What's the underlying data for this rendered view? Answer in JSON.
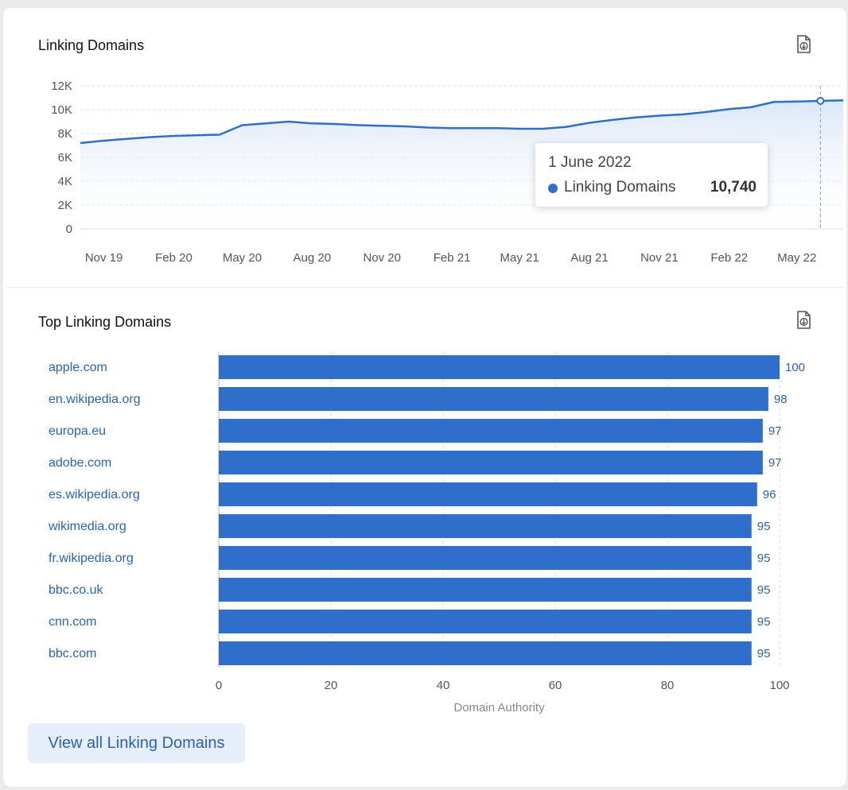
{
  "colors": {
    "accent": "#2f6fcb",
    "bar": "#2f6fcb",
    "link": "#2a62b7",
    "area_fill": "#e9f0fb",
    "grid": "#dcdcdc",
    "axis_text": "#555555",
    "button_bg": "#e6eef9"
  },
  "icons": {
    "export": "file-export-icon"
  },
  "line_section": {
    "title": "Linking Domains"
  },
  "tooltip": {
    "date": "1 June 2022",
    "series": "Linking Domains",
    "value": "10,740"
  },
  "bar_section": {
    "title": "Top Linking Domains"
  },
  "button": {
    "label": "View all Linking Domains"
  },
  "chart_data": [
    {
      "type": "area",
      "title": "Linking Domains",
      "xlabel": "",
      "ylabel": "",
      "ylim": [
        0,
        12000
      ],
      "yticks": [
        "0",
        "2K",
        "4K",
        "6K",
        "8K",
        "10K",
        "12K"
      ],
      "ytick_values": [
        0,
        2000,
        4000,
        6000,
        8000,
        10000,
        12000
      ],
      "xticks": [
        "Nov 19",
        "Feb 20",
        "May 20",
        "Aug 20",
        "Nov 20",
        "Feb 21",
        "May 21",
        "Aug 21",
        "Nov 21",
        "Feb 22",
        "May 22"
      ],
      "x": [
        "2019-10-01",
        "2019-11-01",
        "2019-12-01",
        "2020-01-01",
        "2020-02-01",
        "2020-03-01",
        "2020-04-01",
        "2020-05-01",
        "2020-06-01",
        "2020-07-01",
        "2020-08-01",
        "2020-09-01",
        "2020-10-01",
        "2020-11-01",
        "2020-12-01",
        "2021-01-01",
        "2021-02-01",
        "2021-03-01",
        "2021-04-01",
        "2021-05-01",
        "2021-06-01",
        "2021-07-01",
        "2021-08-01",
        "2021-09-01",
        "2021-10-01",
        "2021-11-01",
        "2021-12-01",
        "2022-01-01",
        "2022-02-01",
        "2022-03-01",
        "2022-04-01",
        "2022-05-01",
        "2022-06-01",
        "2022-07-01"
      ],
      "series": [
        {
          "name": "Linking Domains",
          "values": [
            7200,
            7400,
            7550,
            7700,
            7800,
            7850,
            7900,
            8700,
            8850,
            9000,
            8850,
            8800,
            8700,
            8650,
            8600,
            8500,
            8450,
            8450,
            8450,
            8400,
            8400,
            8550,
            8900,
            9150,
            9350,
            9500,
            9600,
            9800,
            10050,
            10200,
            10650,
            10680,
            10740,
            10780
          ]
        }
      ],
      "highlight": {
        "x": "2022-06-01",
        "value": 10740
      },
      "grid": true,
      "legend": "none"
    },
    {
      "type": "bar",
      "orientation": "horizontal",
      "title": "Top Linking Domains",
      "xlabel": "Domain Authority",
      "ylabel": "",
      "xlim": [
        0,
        100
      ],
      "xticks": [
        "0",
        "20",
        "40",
        "60",
        "80",
        "100"
      ],
      "xtick_values": [
        0,
        20,
        40,
        60,
        80,
        100
      ],
      "categories": [
        "apple.com",
        "en.wikipedia.org",
        "europa.eu",
        "adobe.com",
        "es.wikipedia.org",
        "wikimedia.org",
        "fr.wikipedia.org",
        "bbc.co.uk",
        "cnn.com",
        "bbc.com"
      ],
      "values": [
        100,
        98,
        97,
        97,
        96,
        95,
        95,
        95,
        95,
        95
      ],
      "labels": [
        "100",
        "98",
        "97",
        "97",
        "96",
        "95",
        "95",
        "95",
        "95",
        "95"
      ],
      "grid": true,
      "legend": "none"
    }
  ]
}
